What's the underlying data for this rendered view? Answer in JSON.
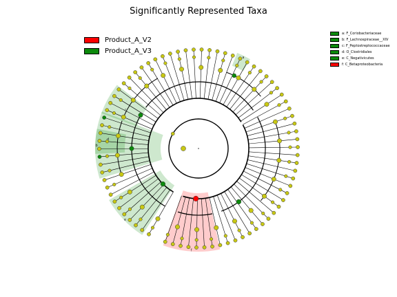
{
  "title": "Significantly Represented Taxa",
  "colors": {
    "nonsig": "#c8c814",
    "green": "#0c8a0c",
    "red": "#ff0000"
  },
  "groups": [
    {
      "label": "Product_A_V2",
      "color": "#ff0000"
    },
    {
      "label": "Product_A_V3",
      "color": "#0c8a0c"
    }
  ],
  "clade_legend": [
    {
      "letter": "a",
      "text": "a: F_Coriobacteriaceae",
      "color": "#0c8a0c"
    },
    {
      "letter": "b",
      "text": "b: F_Lachnospiraceae__XIV",
      "color": "#0c8a0c"
    },
    {
      "letter": "c",
      "text": "c: F_Peptostreptococcaceae",
      "color": "#0c8a0c"
    },
    {
      "letter": "d",
      "text": "d: O_Clostridiales",
      "color": "#0c8a0c"
    },
    {
      "letter": "e",
      "text": "e: C_Negativicutes",
      "color": "#0c8a0c"
    },
    {
      "letter": "f",
      "text": "f: C_Betaproteobacteria",
      "color": "#ff0000"
    }
  ]
}
